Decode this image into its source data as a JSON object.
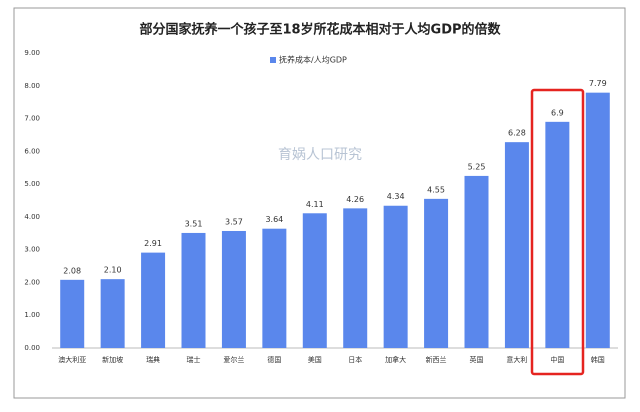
{
  "chart_data": {
    "type": "bar",
    "title": "部分国家抚养一个孩子至18岁所花成本相对于人均GDP的倍数",
    "watermark": "育娲人口研究",
    "categories": [
      "澳大利亚",
      "新加坡",
      "瑞典",
      "瑞士",
      "爱尔兰",
      "德国",
      "美国",
      "日本",
      "加拿大",
      "新西兰",
      "英国",
      "意大利",
      "中国",
      "韩国"
    ],
    "series": [
      {
        "name": "抚养成本/人均GDP",
        "color": "#5a87ec",
        "values": [
          2.08,
          2.1,
          2.91,
          3.51,
          3.57,
          3.64,
          4.11,
          4.26,
          4.34,
          4.55,
          5.25,
          6.28,
          6.9,
          7.79
        ],
        "value_labels": [
          "2.08",
          "2.10",
          "2.91",
          "3.51",
          "3.57",
          "3.64",
          "4.11",
          "4.26",
          "4.34",
          "4.55",
          "5.25",
          "6.28",
          "6.9",
          "7.79"
        ]
      }
    ],
    "ylim": [
      0,
      9
    ],
    "yticks": [
      {
        "value": 0,
        "label": "0.00"
      },
      {
        "value": 1,
        "label": "1.00"
      },
      {
        "value": 2,
        "label": "2.00"
      },
      {
        "value": 3,
        "label": "3.00"
      },
      {
        "value": 4,
        "label": "4.00"
      },
      {
        "value": 5,
        "label": "5.00"
      },
      {
        "value": 6,
        "label": "6.00"
      },
      {
        "value": 7,
        "label": "7.00"
      },
      {
        "value": 8,
        "label": "8.00"
      },
      {
        "value": 9,
        "label": "9.00"
      }
    ],
    "grid": false,
    "legend": "top"
  }
}
